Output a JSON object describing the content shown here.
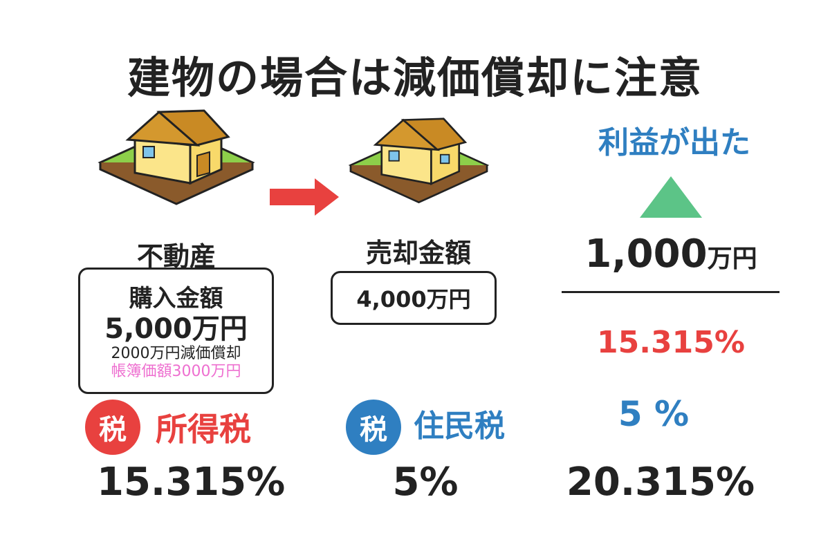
{
  "title": "建物の場合は減価償却に注意",
  "colors": {
    "red": "#e8413f",
    "blue": "#2f7fc1",
    "green": "#5cc487",
    "pink": "#ee6fd0"
  },
  "property": {
    "label": "不動産",
    "purchase_label": "購入金額",
    "purchase_amount": "5,000万円",
    "depreciation": "2000万円減価償却",
    "book_value": "帳簿価額3000万円"
  },
  "sale": {
    "label": "売却金額",
    "amount": "4,000万円"
  },
  "profit": {
    "label": "利益が出た",
    "amount_number": "1,000",
    "amount_unit": "万円",
    "income_rate": "15.315%",
    "resident_rate": "5 %",
    "total_rate": "20.315%"
  },
  "income_tax": {
    "badge": "税",
    "label": "所得税",
    "rate": "15.315%"
  },
  "resident_tax": {
    "badge": "税",
    "label": "住民税",
    "rate": "5%"
  },
  "icons": [
    "house-icon",
    "arrow-right-icon",
    "triangle-up-icon"
  ]
}
